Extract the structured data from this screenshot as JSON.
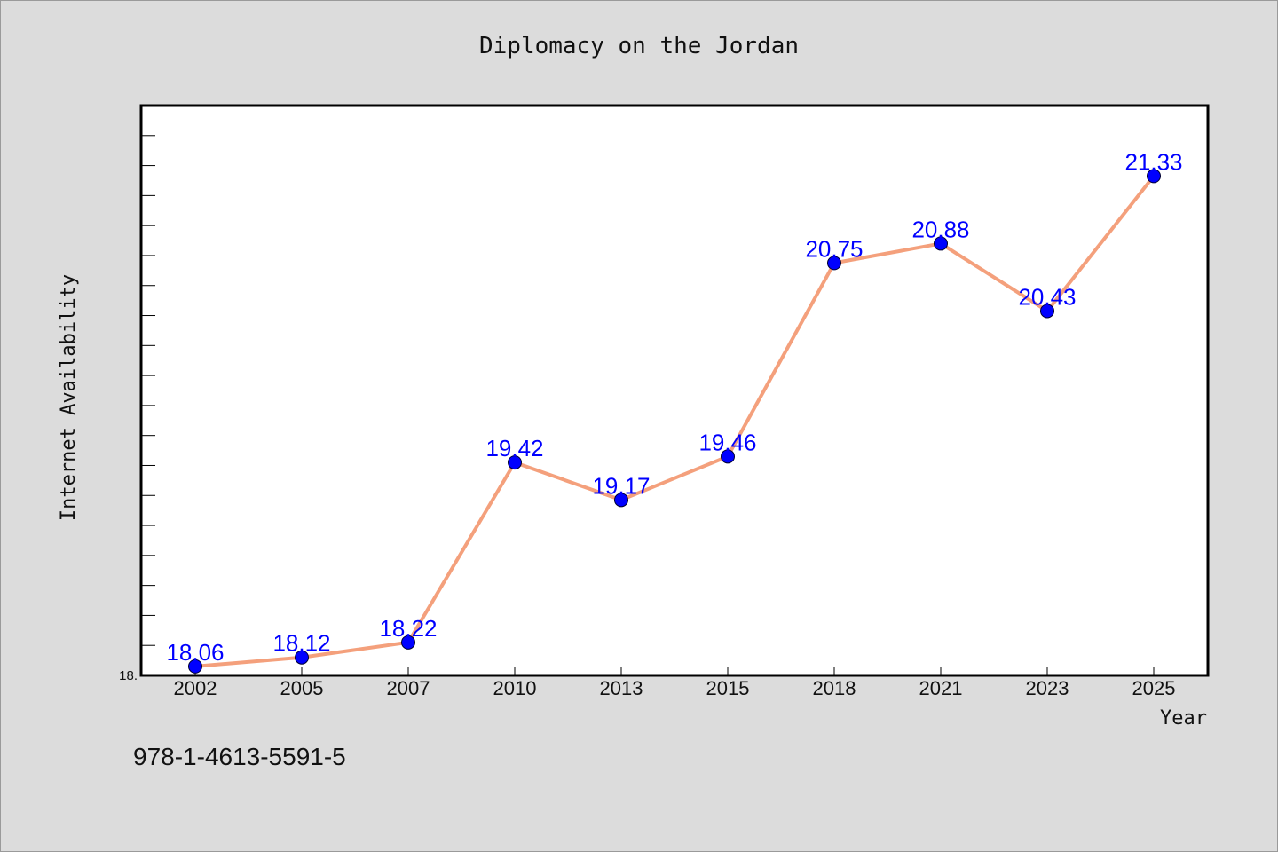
{
  "chart_data": {
    "type": "line",
    "title": "Diplomacy on the Jordan",
    "xlabel": "Year",
    "ylabel": "Internet Availability",
    "categories": [
      "2002",
      "2005",
      "2007",
      "2010",
      "2013",
      "2015",
      "2018",
      "2021",
      "2023",
      "2025"
    ],
    "series": [
      {
        "values": [
          18.06,
          18.12,
          18.22,
          19.42,
          19.17,
          19.46,
          20.75,
          20.88,
          20.43,
          21.33
        ]
      }
    ],
    "data_labels": [
      "18.06",
      "18.12",
      "18.22",
      "19.42",
      "19.17",
      "19.46",
      "20.75",
      "20.88",
      "20.43",
      "21.33"
    ],
    "ylim": [
      18.0,
      21.8
    ],
    "y_tick_labels": [
      "18."
    ],
    "grid": false,
    "line_color": "#f4a07c",
    "marker_color": "#0000ff",
    "label_color": "#0000ff"
  },
  "footer": {
    "isbn": "978-1-4613-5591-5"
  }
}
